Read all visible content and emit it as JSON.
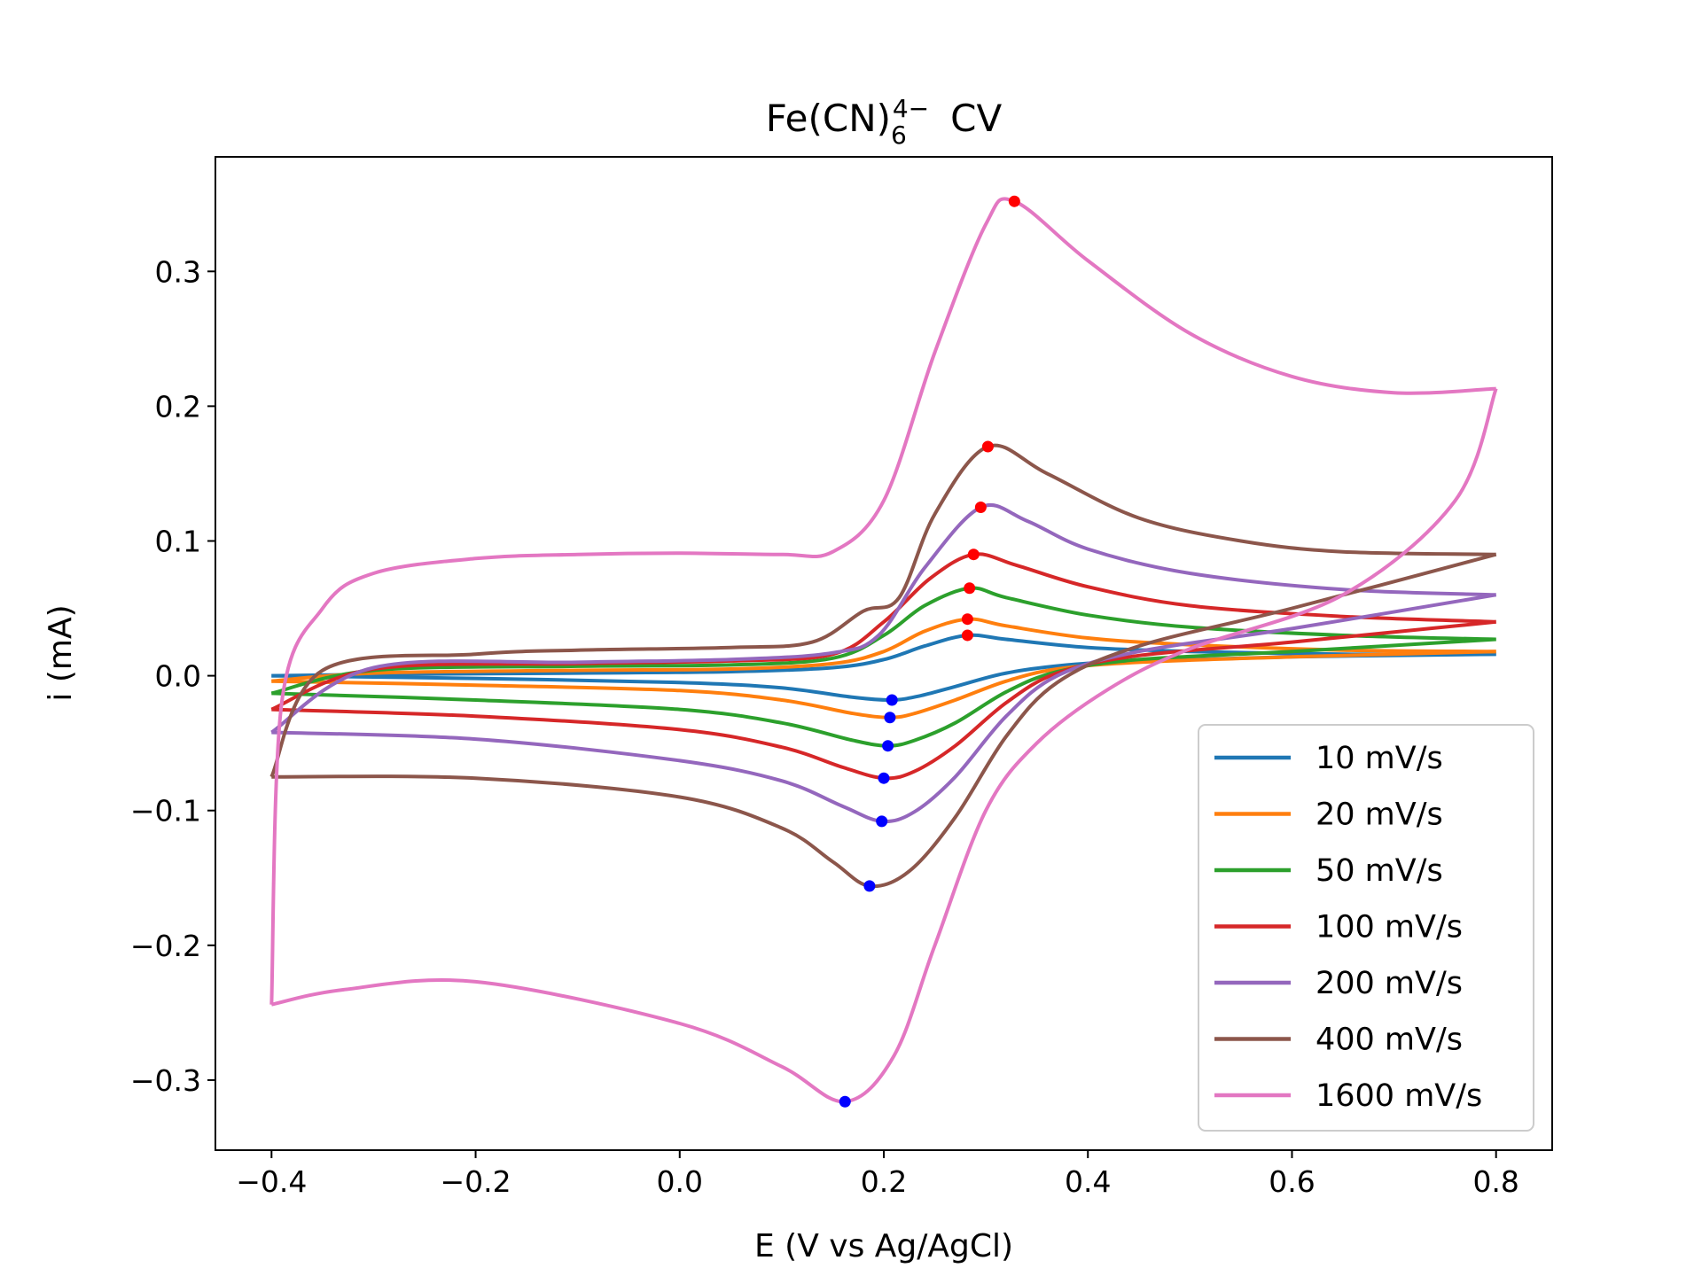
{
  "chart_data": {
    "type": "line",
    "title": {
      "base": "Fe(CN)",
      "sub": "6",
      "sup": "4−",
      "rest": "CV"
    },
    "xlabel": "E (V vs Ag/AgCl)",
    "ylabel": "i (mA)",
    "xlim": [
      -0.455,
      0.855
    ],
    "ylim": [
      -0.352,
      0.385
    ],
    "grid": false,
    "legend_position": "lower-right",
    "x_ticks": [
      {
        "value": -0.4,
        "label": "−0.4"
      },
      {
        "value": -0.2,
        "label": "−0.2"
      },
      {
        "value": 0.0,
        "label": "0.0"
      },
      {
        "value": 0.2,
        "label": "0.2"
      },
      {
        "value": 0.4,
        "label": "0.4"
      },
      {
        "value": 0.6,
        "label": "0.6"
      },
      {
        "value": 0.8,
        "label": "0.8"
      }
    ],
    "y_ticks": [
      {
        "value": -0.3,
        "label": "−0.3"
      },
      {
        "value": -0.2,
        "label": "−0.2"
      },
      {
        "value": -0.1,
        "label": "−0.1"
      },
      {
        "value": 0.0,
        "label": "0.0"
      },
      {
        "value": 0.1,
        "label": "0.1"
      },
      {
        "value": 0.2,
        "label": "0.2"
      },
      {
        "value": 0.3,
        "label": "0.3"
      }
    ],
    "series": [
      {
        "name": "10 mV/s",
        "color": "#1f77b4",
        "anodic_peak": [
          0.282,
          0.03
        ],
        "cathodic_peak": [
          0.208,
          -0.018
        ],
        "cathodic_branch": [
          [
            0.8,
            0.016
          ],
          [
            0.6,
            0.014
          ],
          [
            0.45,
            0.011
          ],
          [
            0.38,
            0.008
          ],
          [
            0.32,
            0.002
          ],
          [
            0.27,
            -0.008
          ],
          [
            0.235,
            -0.015
          ],
          [
            0.208,
            -0.018
          ],
          [
            0.17,
            -0.016
          ],
          [
            0.1,
            -0.009
          ],
          [
            0.0,
            -0.005
          ],
          [
            -0.2,
            -0.002
          ],
          [
            -0.4,
            0.0
          ]
        ],
        "anodic_branch": [
          [
            -0.4,
            0.0
          ],
          [
            -0.3,
            0.001
          ],
          [
            -0.1,
            0.002
          ],
          [
            0.05,
            0.003
          ],
          [
            0.15,
            0.006
          ],
          [
            0.2,
            0.012
          ],
          [
            0.24,
            0.022
          ],
          [
            0.282,
            0.03
          ],
          [
            0.32,
            0.027
          ],
          [
            0.4,
            0.021
          ],
          [
            0.5,
            0.018
          ],
          [
            0.65,
            0.016
          ],
          [
            0.8,
            0.016
          ]
        ]
      },
      {
        "name": "20 mV/s",
        "color": "#ff7f0e",
        "anodic_peak": [
          0.282,
          0.042
        ],
        "cathodic_peak": [
          0.206,
          -0.031
        ],
        "cathodic_branch": [
          [
            0.8,
            0.018
          ],
          [
            0.6,
            0.014
          ],
          [
            0.45,
            0.01
          ],
          [
            0.37,
            0.005
          ],
          [
            0.32,
            -0.004
          ],
          [
            0.27,
            -0.018
          ],
          [
            0.23,
            -0.028
          ],
          [
            0.206,
            -0.031
          ],
          [
            0.17,
            -0.028
          ],
          [
            0.1,
            -0.018
          ],
          [
            0.0,
            -0.011
          ],
          [
            -0.2,
            -0.007
          ],
          [
            -0.4,
            -0.004
          ]
        ],
        "anodic_branch": [
          [
            -0.4,
            -0.004
          ],
          [
            -0.3,
            0.002
          ],
          [
            -0.1,
            0.004
          ],
          [
            0.05,
            0.005
          ],
          [
            0.15,
            0.009
          ],
          [
            0.2,
            0.018
          ],
          [
            0.24,
            0.033
          ],
          [
            0.282,
            0.042
          ],
          [
            0.32,
            0.037
          ],
          [
            0.4,
            0.028
          ],
          [
            0.5,
            0.023
          ],
          [
            0.65,
            0.019
          ],
          [
            0.8,
            0.018
          ]
        ]
      },
      {
        "name": "50 mV/s",
        "color": "#2ca02c",
        "anodic_peak": [
          0.284,
          0.065
        ],
        "cathodic_peak": [
          0.204,
          -0.052
        ],
        "cathodic_branch": [
          [
            0.8,
            0.027
          ],
          [
            0.6,
            0.018
          ],
          [
            0.45,
            0.012
          ],
          [
            0.37,
            0.003
          ],
          [
            0.32,
            -0.012
          ],
          [
            0.27,
            -0.035
          ],
          [
            0.23,
            -0.048
          ],
          [
            0.204,
            -0.052
          ],
          [
            0.17,
            -0.048
          ],
          [
            0.1,
            -0.035
          ],
          [
            0.0,
            -0.025
          ],
          [
            -0.2,
            -0.018
          ],
          [
            -0.4,
            -0.013
          ]
        ],
        "anodic_branch": [
          [
            -0.4,
            -0.013
          ],
          [
            -0.3,
            0.004
          ],
          [
            -0.1,
            0.007
          ],
          [
            0.05,
            0.008
          ],
          [
            0.15,
            0.013
          ],
          [
            0.2,
            0.03
          ],
          [
            0.24,
            0.052
          ],
          [
            0.284,
            0.065
          ],
          [
            0.32,
            0.058
          ],
          [
            0.4,
            0.045
          ],
          [
            0.5,
            0.036
          ],
          [
            0.65,
            0.03
          ],
          [
            0.8,
            0.027
          ]
        ]
      },
      {
        "name": "100 mV/s",
        "color": "#d62728",
        "anodic_peak": [
          0.288,
          0.09
        ],
        "cathodic_peak": [
          0.2,
          -0.076
        ],
        "cathodic_branch": [
          [
            0.8,
            0.04
          ],
          [
            0.6,
            0.025
          ],
          [
            0.45,
            0.015
          ],
          [
            0.37,
            0.002
          ],
          [
            0.32,
            -0.02
          ],
          [
            0.27,
            -0.052
          ],
          [
            0.23,
            -0.071
          ],
          [
            0.2,
            -0.076
          ],
          [
            0.16,
            -0.068
          ],
          [
            0.1,
            -0.053
          ],
          [
            0.0,
            -0.04
          ],
          [
            -0.2,
            -0.03
          ],
          [
            -0.4,
            -0.025
          ]
        ],
        "anodic_branch": [
          [
            -0.4,
            -0.025
          ],
          [
            -0.3,
            0.005
          ],
          [
            -0.1,
            0.009
          ],
          [
            0.05,
            0.011
          ],
          [
            0.15,
            0.016
          ],
          [
            0.2,
            0.04
          ],
          [
            0.245,
            0.072
          ],
          [
            0.288,
            0.09
          ],
          [
            0.33,
            0.082
          ],
          [
            0.4,
            0.066
          ],
          [
            0.5,
            0.052
          ],
          [
            0.65,
            0.044
          ],
          [
            0.8,
            0.04
          ]
        ]
      },
      {
        "name": "200 mV/s",
        "color": "#9467bd",
        "anodic_peak": [
          0.295,
          0.125
        ],
        "cathodic_peak": [
          0.198,
          -0.108
        ],
        "cathodic_branch": [
          [
            0.8,
            0.06
          ],
          [
            0.6,
            0.035
          ],
          [
            0.45,
            0.018
          ],
          [
            0.37,
            0.0
          ],
          [
            0.32,
            -0.03
          ],
          [
            0.27,
            -0.075
          ],
          [
            0.23,
            -0.101
          ],
          [
            0.198,
            -0.108
          ],
          [
            0.16,
            -0.097
          ],
          [
            0.1,
            -0.078
          ],
          [
            0.0,
            -0.063
          ],
          [
            -0.2,
            -0.047
          ],
          [
            -0.4,
            -0.042
          ]
        ],
        "anodic_branch": [
          [
            -0.4,
            -0.042
          ],
          [
            -0.3,
            0.006
          ],
          [
            -0.1,
            0.01
          ],
          [
            0.05,
            0.012
          ],
          [
            0.15,
            0.017
          ],
          [
            0.195,
            0.03
          ],
          [
            0.24,
            0.08
          ],
          [
            0.295,
            0.125
          ],
          [
            0.34,
            0.115
          ],
          [
            0.4,
            0.094
          ],
          [
            0.5,
            0.076
          ],
          [
            0.65,
            0.064
          ],
          [
            0.8,
            0.06
          ]
        ]
      },
      {
        "name": "400 mV/s",
        "color": "#8c564b",
        "anodic_peak": [
          0.302,
          0.17
        ],
        "cathodic_peak": [
          0.186,
          -0.156
        ],
        "cathodic_branch": [
          [
            0.8,
            0.09
          ],
          [
            0.6,
            0.05
          ],
          [
            0.45,
            0.022
          ],
          [
            0.37,
            -0.005
          ],
          [
            0.32,
            -0.045
          ],
          [
            0.27,
            -0.105
          ],
          [
            0.225,
            -0.145
          ],
          [
            0.186,
            -0.156
          ],
          [
            0.15,
            -0.138
          ],
          [
            0.1,
            -0.113
          ],
          [
            0.0,
            -0.09
          ],
          [
            -0.2,
            -0.076
          ],
          [
            -0.4,
            -0.075
          ]
        ],
        "anodic_branch": [
          [
            -0.4,
            -0.075
          ],
          [
            -0.35,
            0.004
          ],
          [
            -0.2,
            0.016
          ],
          [
            -0.1,
            0.019
          ],
          [
            0.05,
            0.021
          ],
          [
            0.13,
            0.025
          ],
          [
            0.18,
            0.048
          ],
          [
            0.215,
            0.058
          ],
          [
            0.25,
            0.12
          ],
          [
            0.302,
            0.17
          ],
          [
            0.36,
            0.15
          ],
          [
            0.45,
            0.117
          ],
          [
            0.55,
            0.1
          ],
          [
            0.65,
            0.092
          ],
          [
            0.8,
            0.09
          ]
        ]
      },
      {
        "name": "1600 mV/s",
        "color": "#e377c2",
        "anodic_peak": [
          0.328,
          0.352
        ],
        "cathodic_peak": [
          0.162,
          -0.316
        ],
        "cathodic_branch": [
          [
            0.8,
            0.213
          ],
          [
            0.76,
            0.13
          ],
          [
            0.65,
            0.06
          ],
          [
            0.5,
            0.02
          ],
          [
            0.42,
            -0.01
          ],
          [
            0.35,
            -0.05
          ],
          [
            0.3,
            -0.1
          ],
          [
            0.25,
            -0.2
          ],
          [
            0.21,
            -0.282
          ],
          [
            0.162,
            -0.316
          ],
          [
            0.1,
            -0.29
          ],
          [
            0.0,
            -0.258
          ],
          [
            -0.2,
            -0.227
          ],
          [
            -0.33,
            -0.233
          ],
          [
            -0.4,
            -0.244
          ]
        ],
        "anodic_branch": [
          [
            -0.4,
            -0.244
          ],
          [
            -0.39,
            -0.02
          ],
          [
            -0.35,
            0.05
          ],
          [
            -0.3,
            0.076
          ],
          [
            -0.2,
            0.087
          ],
          [
            -0.1,
            0.09
          ],
          [
            0.0,
            0.091
          ],
          [
            0.1,
            0.09
          ],
          [
            0.15,
            0.092
          ],
          [
            0.2,
            0.13
          ],
          [
            0.25,
            0.24
          ],
          [
            0.3,
            0.335
          ],
          [
            0.328,
            0.352
          ],
          [
            0.4,
            0.308
          ],
          [
            0.5,
            0.254
          ],
          [
            0.6,
            0.222
          ],
          [
            0.7,
            0.21
          ],
          [
            0.8,
            0.213
          ]
        ]
      }
    ]
  }
}
